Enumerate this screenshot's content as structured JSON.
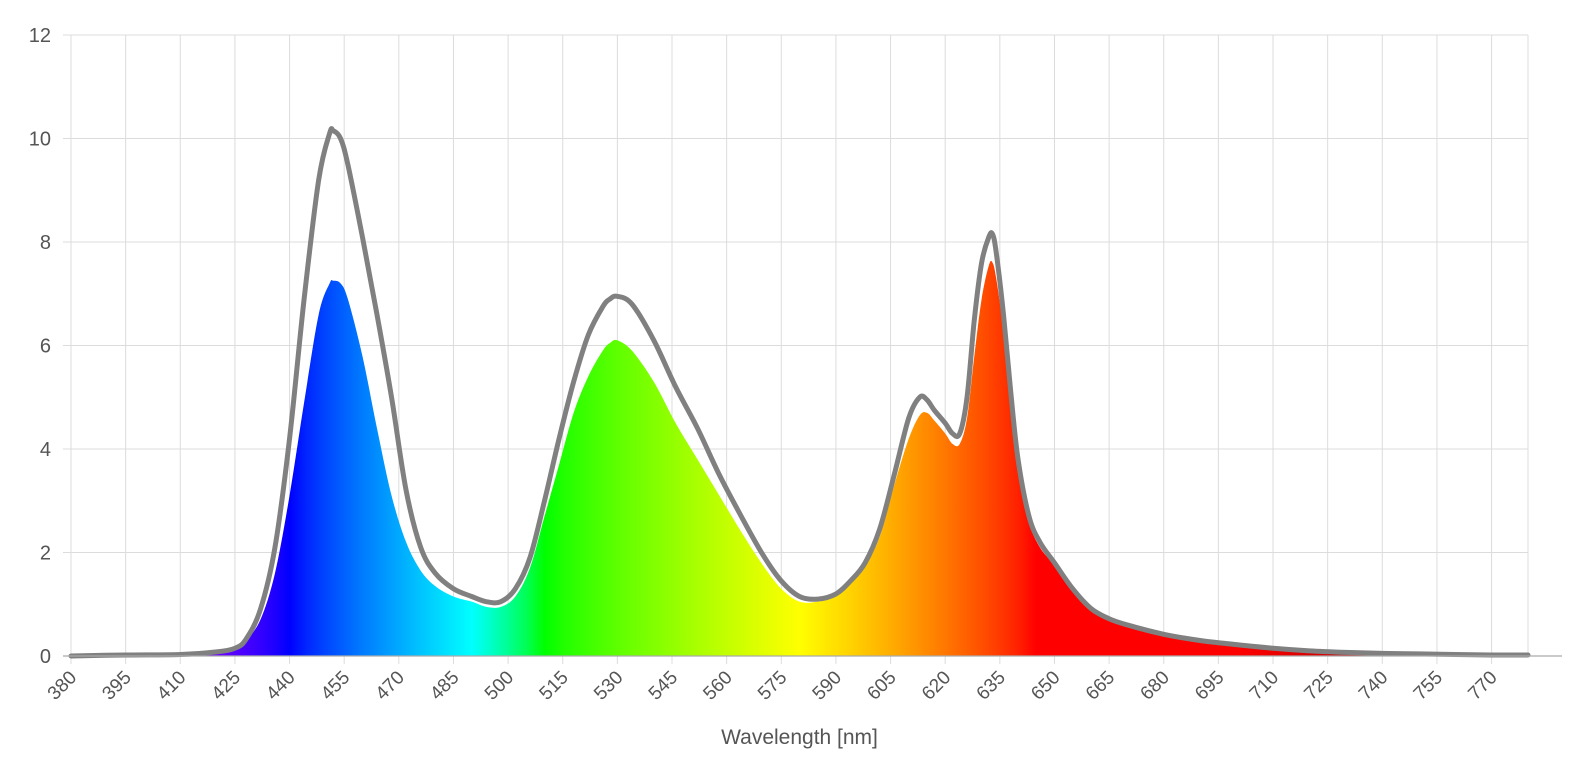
{
  "chart_data": {
    "type": "area",
    "title": "",
    "xlabel": "Wavelength [nm]",
    "ylabel": "",
    "xlim": [
      380,
      780
    ],
    "ylim": [
      0,
      12
    ],
    "x_ticks": [
      380,
      395,
      410,
      425,
      440,
      455,
      470,
      485,
      500,
      515,
      530,
      545,
      560,
      575,
      590,
      605,
      620,
      635,
      650,
      665,
      680,
      695,
      710,
      725,
      740,
      755,
      770
    ],
    "x_tick_labels": [
      "380",
      "395",
      "410",
      "425",
      "440",
      "455",
      "470",
      "485",
      "500",
      "515",
      "530",
      "545",
      "560",
      "575",
      "590",
      "605",
      "620",
      "635",
      "650",
      "665",
      "680",
      "695",
      "710",
      "725",
      "740",
      "755",
      "770"
    ],
    "y_ticks": [
      0,
      2,
      4,
      6,
      8,
      10,
      12
    ],
    "y_tick_labels": [
      "0",
      "2",
      "4",
      "6",
      "8",
      "10",
      "12"
    ],
    "grid": true,
    "series": [
      {
        "style": "filled-spectrum",
        "x": [
          380,
          395,
          410,
          420,
          425,
          428,
          432,
          436,
          440,
          444,
          448,
          451,
          452,
          454,
          456,
          460,
          464,
          468,
          472,
          476,
          480,
          485,
          490,
          494,
          498,
          502,
          506,
          510,
          514,
          518,
          522,
          526,
          528,
          530,
          534,
          540,
          546,
          552,
          558,
          564,
          570,
          575,
          580,
          585,
          590,
          594,
          598,
          602,
          606,
          610,
          613,
          615,
          617,
          620,
          622,
          624,
          626,
          628,
          630,
          632,
          633,
          634,
          636,
          638,
          640,
          643,
          646,
          650,
          655,
          660,
          665,
          670,
          680,
          690,
          700,
          710,
          720,
          730,
          740,
          750,
          760,
          770,
          780
        ],
        "y": [
          0.0,
          0.02,
          0.03,
          0.08,
          0.15,
          0.3,
          0.7,
          1.6,
          3.1,
          4.9,
          6.6,
          7.2,
          7.25,
          7.2,
          6.9,
          5.8,
          4.4,
          3.1,
          2.2,
          1.65,
          1.35,
          1.15,
          1.05,
          0.95,
          0.95,
          1.15,
          1.7,
          2.7,
          3.7,
          4.7,
          5.4,
          5.9,
          6.05,
          6.1,
          5.9,
          5.3,
          4.5,
          3.8,
          3.1,
          2.4,
          1.75,
          1.3,
          1.05,
          1.05,
          1.15,
          1.4,
          1.75,
          2.3,
          3.3,
          4.2,
          4.65,
          4.7,
          4.55,
          4.3,
          4.1,
          4.1,
          4.6,
          5.8,
          6.9,
          7.55,
          7.6,
          7.3,
          6.3,
          5.0,
          3.7,
          2.6,
          2.1,
          1.75,
          1.25,
          0.9,
          0.7,
          0.6,
          0.42,
          0.3,
          0.22,
          0.15,
          0.1,
          0.07,
          0.05,
          0.04,
          0.03,
          0.02,
          0.02
        ]
      },
      {
        "style": "gray-outline",
        "color": "#808080",
        "x": [
          380,
          395,
          410,
          420,
          425,
          428,
          432,
          436,
          440,
          444,
          448,
          451,
          452,
          454,
          456,
          460,
          464,
          468,
          472,
          476,
          480,
          485,
          490,
          494,
          498,
          502,
          506,
          510,
          514,
          518,
          522,
          526,
          528,
          530,
          534,
          540,
          546,
          552,
          558,
          564,
          570,
          575,
          580,
          585,
          590,
          594,
          598,
          602,
          606,
          610,
          613,
          615,
          617,
          620,
          622,
          624,
          626,
          628,
          630,
          632,
          633,
          634,
          636,
          638,
          640,
          643,
          646,
          650,
          655,
          660,
          665,
          670,
          680,
          690,
          700,
          710,
          720,
          730,
          740,
          750,
          760,
          770,
          780
        ],
        "y": [
          0.0,
          0.02,
          0.03,
          0.08,
          0.15,
          0.32,
          0.9,
          2.1,
          4.2,
          6.9,
          9.2,
          10.1,
          10.15,
          10.0,
          9.5,
          8.1,
          6.6,
          5.0,
          3.2,
          2.1,
          1.6,
          1.3,
          1.15,
          1.05,
          1.05,
          1.3,
          1.9,
          3.0,
          4.2,
          5.3,
          6.2,
          6.75,
          6.9,
          6.95,
          6.8,
          6.1,
          5.2,
          4.4,
          3.5,
          2.7,
          1.95,
          1.45,
          1.15,
          1.1,
          1.2,
          1.45,
          1.8,
          2.45,
          3.5,
          4.6,
          5.0,
          4.95,
          4.75,
          4.5,
          4.3,
          4.3,
          5.0,
          6.5,
          7.6,
          8.1,
          8.15,
          7.8,
          6.6,
          5.1,
          3.8,
          2.7,
          2.2,
          1.8,
          1.3,
          0.92,
          0.72,
          0.6,
          0.42,
          0.3,
          0.22,
          0.15,
          0.1,
          0.07,
          0.05,
          0.04,
          0.03,
          0.02,
          0.02
        ]
      }
    ]
  }
}
